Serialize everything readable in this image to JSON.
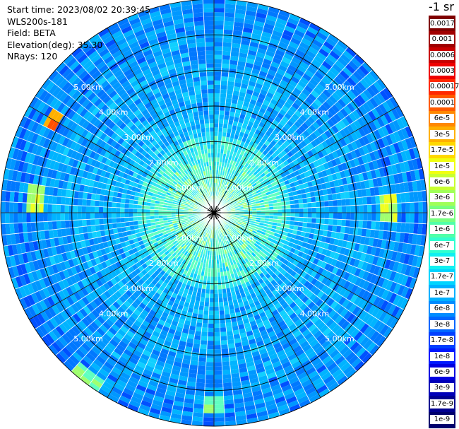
{
  "header": {
    "start_time_label": "Start time:",
    "start_time_value": "2023/08/02 20:39:45",
    "instrument": "WLS200s-181",
    "field_label": "Field:",
    "field_value": "BETA",
    "elevation_label": "Elevation(deg):",
    "elevation_value": "35.30",
    "nrays_label": "NRays:",
    "nrays_value": "120"
  },
  "colorbar": {
    "units": "-1 sr",
    "ticks": [
      "0.0017",
      "0.001",
      "0.0006",
      "0.0003",
      "0.00017",
      "0.0001",
      "6e-5",
      "3e-5",
      "1.7e-5",
      "1e-5",
      "6e-6",
      "3e-6",
      "1.7e-6",
      "1e-6",
      "6e-7",
      "3e-7",
      "1.7e-7",
      "1e-7",
      "6e-8",
      "3e-8",
      "1.7e-8",
      "1e-8",
      "6e-9",
      "3e-9",
      "1.7e-9",
      "1e-9"
    ],
    "colors": [
      "#7f0000",
      "#a00000",
      "#c80000",
      "#ee0000",
      "#ff2a00",
      "#ff5a00",
      "#ff8800",
      "#ffb000",
      "#ffd800",
      "#f0ff10",
      "#c8ff30",
      "#a0ff58",
      "#78ff80",
      "#50ffa8",
      "#30ffd0",
      "#10f0f0",
      "#00d4ff",
      "#00b0ff",
      "#008cff",
      "#0066ff",
      "#0040ff",
      "#0018ff",
      "#0000e0",
      "#0000b8",
      "#000090",
      "#00006c"
    ]
  },
  "chart_data": {
    "type": "heatmap",
    "projection": "polar",
    "n_rays": 120,
    "range_unit": "km",
    "max_range_km": 6.0,
    "range_rings_km": [
      1,
      2,
      3,
      4,
      5,
      6
    ],
    "ring_labels": [
      "1.00km",
      "2.00km",
      "3.00km",
      "4.00km",
      "5.00km"
    ],
    "radial_line_angles_deg": [
      0,
      30,
      60,
      90,
      120,
      150,
      180,
      210,
      240,
      270,
      300,
      330
    ],
    "high_return_features": [
      {
        "azimuth_deg": 300,
        "range_km": 5.2,
        "level": "high"
      },
      {
        "azimuth_deg": 275,
        "range_km": 5.0,
        "level": "medium"
      },
      {
        "azimuth_deg": 88,
        "range_km": 4.9,
        "level": "medium"
      },
      {
        "azimuth_deg": 218,
        "range_km": 5.9,
        "level": "low"
      },
      {
        "azimuth_deg": 180,
        "range_km": 5.4,
        "level": "low"
      }
    ]
  }
}
